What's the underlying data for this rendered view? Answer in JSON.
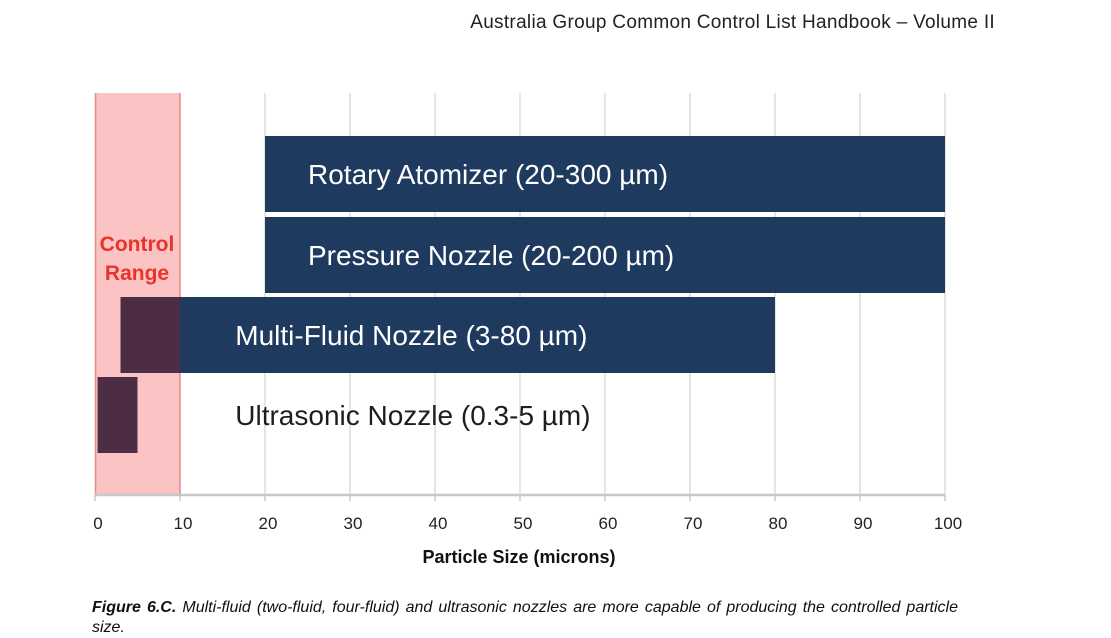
{
  "header": {
    "title": "Australia Group Common Control List Handbook – Volume II"
  },
  "chart_data": {
    "type": "bar",
    "orientation": "horizontal-range",
    "xlabel": "Particle Size (microns)",
    "xlim": [
      0,
      100
    ],
    "xticks": [
      0,
      10,
      20,
      30,
      40,
      50,
      60,
      70,
      80,
      90,
      100
    ],
    "grid": "vertical",
    "control_range": {
      "label_line1": "Control",
      "label_line2": "Range",
      "start": 0,
      "end": 10,
      "color": "#fbc3c3"
    },
    "bars": [
      {
        "label": "Rotary Atomizer (20-300 µm)",
        "start": 20,
        "end": 300,
        "color": "#1f3a5f"
      },
      {
        "label": "Pressure Nozzle (20-200 µm)",
        "start": 20,
        "end": 200,
        "color": "#1f3a5f"
      },
      {
        "label": "Multi-Fluid Nozzle (3-80 µm)",
        "start": 3,
        "end": 80,
        "color": "#1f3a5f"
      },
      {
        "label": "Ultrasonic Nozzle (0.3-5 µm)",
        "start": 0.3,
        "end": 5,
        "color": "#1f3a5f"
      }
    ],
    "overlap_color": "#4d2c45"
  },
  "caption": {
    "figure": "Figure 6.C.",
    "text": "Multi-fluid (two-fluid, four-fluid) and ultrasonic nozzles are more capable of producing the controlled particle size."
  }
}
